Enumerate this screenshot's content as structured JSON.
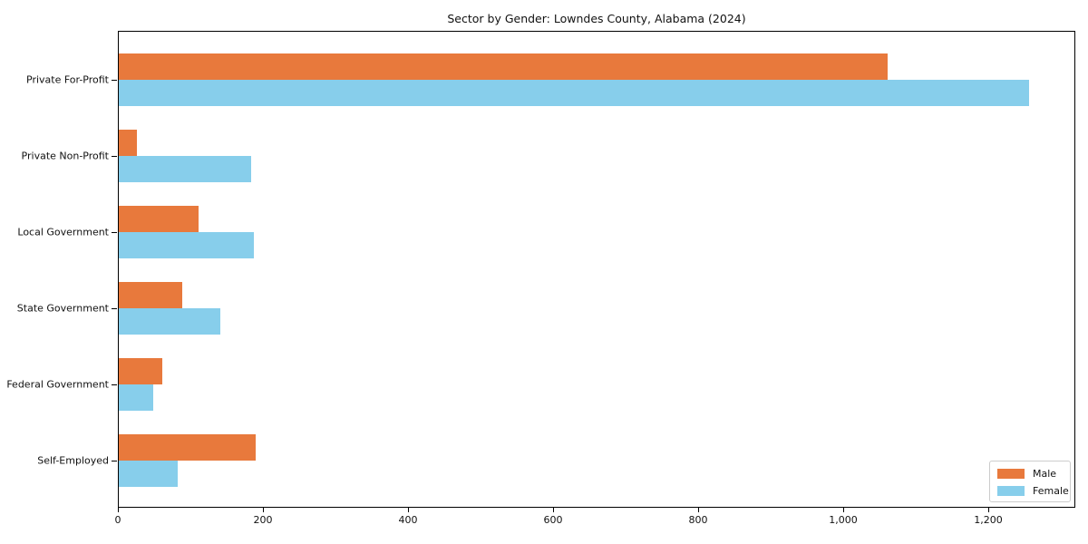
{
  "chart_data": {
    "type": "bar",
    "orientation": "horizontal",
    "title": "Sector by Gender: Lowndes County, Alabama (2024)",
    "xlabel": "",
    "ylabel": "",
    "categories": [
      "Private For-Profit",
      "Private Non-Profit",
      "Local Government",
      "State Government",
      "Federal Government",
      "Self-Employed"
    ],
    "series": [
      {
        "name": "Male",
        "color": "#e8793c",
        "values": [
          1060,
          25,
          110,
          88,
          60,
          189
        ]
      },
      {
        "name": "Female",
        "color": "#87ceeb",
        "values": [
          1255,
          182,
          186,
          140,
          47,
          81
        ]
      }
    ],
    "xlim": [
      0,
      1320
    ],
    "xticks": [
      0,
      200,
      400,
      600,
      800,
      1000,
      1200
    ],
    "xtick_labels": [
      "0",
      "200",
      "400",
      "600",
      "800",
      "1,000",
      "1,200"
    ],
    "grid": false,
    "legend": {
      "position": "lower right",
      "labels": [
        "Male",
        "Female"
      ]
    }
  }
}
